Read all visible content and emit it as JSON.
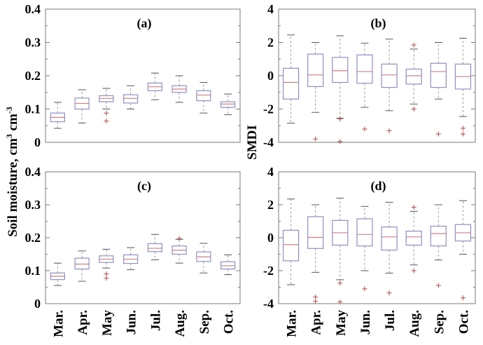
{
  "figure": {
    "left_ylabel": {
      "pre": "Soil moisture, cm",
      "sup1": "3",
      "mid": " cm",
      "sup2": "-3"
    },
    "right_ylabel": "SMDI",
    "colors": {
      "box_edge": "#8f8fc4",
      "median": "#c98282",
      "whisker": "#9a9a9a",
      "cap": "#55555f",
      "outlier": "#b04a4a",
      "frame": "#7a7a7a",
      "text": "#000000",
      "background": "#ffffff"
    }
  },
  "chart_data": [
    {
      "type": "box",
      "id": "a",
      "title": "(a)",
      "ylabel": "Soil moisture, cm3 cm-3",
      "ylim": [
        0,
        0.4
      ],
      "yticks": [
        0,
        0.1,
        0.2,
        0.3,
        0.4
      ],
      "yticklabels": [
        "0",
        "0.1",
        "0.2",
        "0.3",
        "0.4"
      ],
      "minor_ticks": [
        0.05,
        0.15,
        0.25,
        0.35
      ],
      "categories": [
        "Mar.",
        "Apr.",
        "May",
        "Jun.",
        "Jul.",
        "Aug.",
        "Sep.",
        "Oct."
      ],
      "xticklabels_shown": false,
      "boxes": [
        {
          "month": "Mar.",
          "whisker_low": 0.042,
          "q1": 0.062,
          "median": 0.075,
          "q3": 0.088,
          "whisker_high": 0.12,
          "outliers": []
        },
        {
          "month": "Apr.",
          "whisker_low": 0.058,
          "q1": 0.1,
          "median": 0.117,
          "q3": 0.133,
          "whisker_high": 0.158,
          "outliers": []
        },
        {
          "month": "May",
          "whisker_low": 0.1,
          "q1": 0.122,
          "median": 0.132,
          "q3": 0.14,
          "whisker_high": 0.162,
          "outliers": [
            0.088,
            0.064
          ]
        },
        {
          "month": "Jun.",
          "whisker_low": 0.1,
          "q1": 0.118,
          "median": 0.132,
          "q3": 0.143,
          "whisker_high": 0.17,
          "outliers": []
        },
        {
          "month": "Jul.",
          "whisker_low": 0.128,
          "q1": 0.155,
          "median": 0.167,
          "q3": 0.178,
          "whisker_high": 0.208,
          "outliers": []
        },
        {
          "month": "Aug.",
          "whisker_low": 0.12,
          "q1": 0.15,
          "median": 0.16,
          "q3": 0.17,
          "whisker_high": 0.2,
          "outliers": []
        },
        {
          "month": "Sep.",
          "whisker_low": 0.088,
          "q1": 0.125,
          "median": 0.142,
          "q3": 0.155,
          "whisker_high": 0.18,
          "outliers": []
        },
        {
          "month": "Oct.",
          "whisker_low": 0.083,
          "q1": 0.105,
          "median": 0.115,
          "q3": 0.122,
          "whisker_high": 0.145,
          "outliers": []
        }
      ]
    },
    {
      "type": "box",
      "id": "b",
      "title": "(b)",
      "ylabel": "SMDI",
      "ylim": [
        -4,
        4
      ],
      "yticks": [
        -4,
        -2,
        0,
        2,
        4
      ],
      "yticklabels": [
        "-4",
        "-2",
        "0",
        "2",
        "4"
      ],
      "minor_ticks": [
        -3,
        -1,
        1,
        3
      ],
      "categories": [
        "Mar.",
        "Apr.",
        "May",
        "Jun.",
        "Jul.",
        "Aug.",
        "Sep.",
        "Oct."
      ],
      "xticklabels_shown": false,
      "boxes": [
        {
          "month": "Mar.",
          "whisker_low": -2.85,
          "q1": -1.4,
          "median": -0.4,
          "q3": 0.45,
          "whisker_high": 2.45,
          "outliers": []
        },
        {
          "month": "Apr.",
          "whisker_low": -2.2,
          "q1": -0.65,
          "median": 0.05,
          "q3": 1.3,
          "whisker_high": 2.0,
          "outliers": [
            -3.8
          ]
        },
        {
          "month": "May",
          "whisker_low": -2.55,
          "q1": -0.4,
          "median": 0.3,
          "q3": 1.1,
          "whisker_high": 2.4,
          "outliers": [
            -2.6,
            -3.95
          ]
        },
        {
          "month": "Jun.",
          "whisker_low": -1.9,
          "q1": -0.45,
          "median": 0.25,
          "q3": 1.25,
          "whisker_high": 1.95,
          "outliers": [
            -3.2
          ]
        },
        {
          "month": "Jul.",
          "whisker_low": -2.1,
          "q1": -0.7,
          "median": 0.05,
          "q3": 0.7,
          "whisker_high": 2.2,
          "outliers": [
            -3.3
          ]
        },
        {
          "month": "Aug.",
          "whisker_low": -1.7,
          "q1": -0.5,
          "median": 0.0,
          "q3": 0.4,
          "whisker_high": 1.6,
          "outliers": [
            1.85,
            -2.0
          ]
        },
        {
          "month": "Sep.",
          "whisker_low": -1.4,
          "q1": -0.7,
          "median": 0.25,
          "q3": 0.75,
          "whisker_high": 2.0,
          "outliers": [
            -3.5
          ]
        },
        {
          "month": "Oct.",
          "whisker_low": -2.45,
          "q1": -0.8,
          "median": -0.05,
          "q3": 0.7,
          "whisker_high": 2.25,
          "outliers": [
            -3.15,
            -3.5
          ]
        }
      ]
    },
    {
      "type": "box",
      "id": "c",
      "title": "(c)",
      "ylabel": "Soil moisture, cm3 cm-3",
      "ylim": [
        0,
        0.4
      ],
      "yticks": [
        0,
        0.1,
        0.2,
        0.3,
        0.4
      ],
      "yticklabels": [
        "0",
        "0.1",
        "0.2",
        "0.3",
        "0.4"
      ],
      "minor_ticks": [
        0.05,
        0.15,
        0.25,
        0.35
      ],
      "categories": [
        "Mar.",
        "Apr.",
        "May",
        "Jun.",
        "Jul.",
        "Aug.",
        "Sep.",
        "Oct."
      ],
      "xticklabels_shown": true,
      "boxes": [
        {
          "month": "Mar.",
          "whisker_low": 0.055,
          "q1": 0.073,
          "median": 0.083,
          "q3": 0.093,
          "whisker_high": 0.123,
          "outliers": []
        },
        {
          "month": "Apr.",
          "whisker_low": 0.068,
          "q1": 0.105,
          "median": 0.12,
          "q3": 0.138,
          "whisker_high": 0.16,
          "outliers": []
        },
        {
          "month": "May",
          "whisker_low": 0.108,
          "q1": 0.125,
          "median": 0.135,
          "q3": 0.145,
          "whisker_high": 0.165,
          "outliers": [
            0.09,
            0.077
          ]
        },
        {
          "month": "Jun.",
          "whisker_low": 0.103,
          "q1": 0.122,
          "median": 0.135,
          "q3": 0.148,
          "whisker_high": 0.17,
          "outliers": []
        },
        {
          "month": "Jul.",
          "whisker_low": 0.133,
          "q1": 0.158,
          "median": 0.168,
          "q3": 0.182,
          "whisker_high": 0.21,
          "outliers": []
        },
        {
          "month": "Aug.",
          "whisker_low": 0.123,
          "q1": 0.15,
          "median": 0.162,
          "q3": 0.175,
          "whisker_high": 0.195,
          "outliers": [
            0.198
          ]
        },
        {
          "month": "Sep.",
          "whisker_low": 0.093,
          "q1": 0.128,
          "median": 0.142,
          "q3": 0.157,
          "whisker_high": 0.183,
          "outliers": []
        },
        {
          "month": "Oct.",
          "whisker_low": 0.088,
          "q1": 0.105,
          "median": 0.115,
          "q3": 0.127,
          "whisker_high": 0.148,
          "outliers": []
        }
      ]
    },
    {
      "type": "box",
      "id": "d",
      "title": "(d)",
      "ylabel": "SMDI",
      "ylim": [
        -4,
        4
      ],
      "yticks": [
        -4,
        -2,
        0,
        2,
        4
      ],
      "yticklabels": [
        "-4",
        "-2",
        "0",
        "2",
        "4"
      ],
      "minor_ticks": [
        -3,
        -1,
        1,
        3
      ],
      "categories": [
        "Mar.",
        "Apr.",
        "May",
        "Jun.",
        "Jul.",
        "Aug.",
        "Sep.",
        "Oct."
      ],
      "xticklabels_shown": true,
      "boxes": [
        {
          "month": "Mar.",
          "whisker_low": -2.85,
          "q1": -1.4,
          "median": -0.42,
          "q3": 0.45,
          "whisker_high": 2.35,
          "outliers": []
        },
        {
          "month": "Apr.",
          "whisker_low": -2.1,
          "q1": -0.65,
          "median": 0.02,
          "q3": 1.28,
          "whisker_high": 2.0,
          "outliers": [
            -3.6,
            -3.85
          ]
        },
        {
          "month": "May",
          "whisker_low": -2.55,
          "q1": -0.45,
          "median": 0.3,
          "q3": 1.05,
          "whisker_high": 2.4,
          "outliers": [
            -2.75,
            -3.9
          ]
        },
        {
          "month": "Jun.",
          "whisker_low": -2.0,
          "q1": -0.5,
          "median": 0.2,
          "q3": 1.15,
          "whisker_high": 1.9,
          "outliers": [
            -3.1
          ]
        },
        {
          "month": "Jul.",
          "whisker_low": -2.15,
          "q1": -0.75,
          "median": 0.05,
          "q3": 0.65,
          "whisker_high": 2.15,
          "outliers": [
            -3.35
          ]
        },
        {
          "month": "Aug.",
          "whisker_low": -1.65,
          "q1": -0.45,
          "median": 0.05,
          "q3": 0.4,
          "whisker_high": 1.6,
          "outliers": [
            1.85,
            -2.0
          ]
        },
        {
          "month": "Sep.",
          "whisker_low": -1.35,
          "q1": -0.5,
          "median": 0.25,
          "q3": 0.7,
          "whisker_high": 2.0,
          "outliers": [
            -2.9
          ]
        },
        {
          "month": "Oct.",
          "whisker_low": -1.0,
          "q1": -0.2,
          "median": 0.3,
          "q3": 0.8,
          "whisker_high": 2.25,
          "outliers": [
            -3.65
          ]
        }
      ]
    }
  ]
}
